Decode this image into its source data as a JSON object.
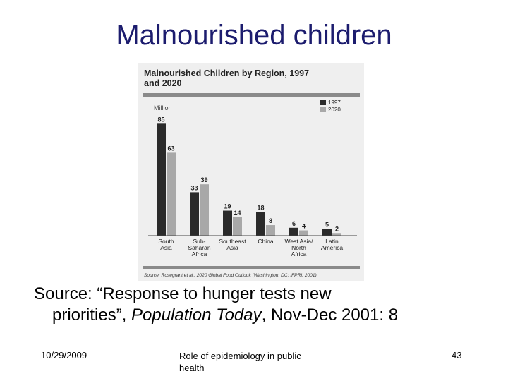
{
  "slide": {
    "title": "Malnourished children",
    "source_prefix": "Source:  “Response to hunger tests new",
    "source_line2_a": "priorities”, ",
    "source_line2_italic": "Population Today",
    "source_line2_b": ", Nov-Dec 2001: 8"
  },
  "footer": {
    "date": "10/29/2009",
    "center": "Role of epidemiology in public health",
    "page": "43"
  },
  "chart_data": {
    "type": "bar",
    "title_line1": "Malnourished Children by Region, 1997",
    "title_line2": "and 2020",
    "ylabel": "Million",
    "ylim": [
      0,
      90
    ],
    "categories": [
      [
        "South",
        "Asia"
      ],
      [
        "Sub-",
        "Saharan",
        "Africa"
      ],
      [
        "Southeast",
        "Asia"
      ],
      [
        "China"
      ],
      [
        "West Asia/",
        "North",
        "Africa"
      ],
      [
        "Latin",
        "America"
      ]
    ],
    "series": [
      {
        "name": "1997",
        "color": "#2a2a2a",
        "values": [
          85,
          33,
          19,
          18,
          6,
          5
        ]
      },
      {
        "name": "2020",
        "color": "#a8a8a8",
        "values": [
          63,
          39,
          14,
          8,
          4,
          2
        ]
      }
    ],
    "legend_position": "top-right",
    "source_note": "Source: Rosegrant et al., 2020 Global Food Outlook (Washington, DC: IFPRI, 2001)."
  }
}
